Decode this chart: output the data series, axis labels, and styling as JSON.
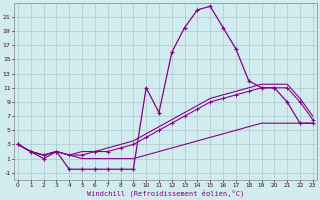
{
  "xlabel": "Windchill (Refroidissement éolien,°C)",
  "background_color": "#d0ecee",
  "grid_color": "#b0c8cc",
  "line_color": "#880088",
  "hours": [
    0,
    1,
    2,
    3,
    4,
    5,
    6,
    7,
    8,
    9,
    10,
    11,
    12,
    13,
    14,
    15,
    16,
    17,
    18,
    19,
    20,
    21,
    22,
    23
  ],
  "windchill": [
    3.0,
    2.0,
    1.0,
    2.0,
    -0.5,
    -0.5,
    -0.5,
    -0.5,
    -0.5,
    -0.5,
    11.0,
    7.5,
    16.0,
    19.5,
    22.0,
    22.5,
    19.5,
    16.5,
    12.0,
    11.0,
    11.0,
    9.0,
    6.0,
    6.0
  ],
  "line1": [
    3.0,
    2.0,
    1.5,
    2.0,
    1.5,
    1.5,
    2.0,
    2.0,
    2.5,
    3.0,
    4.0,
    5.0,
    6.0,
    7.0,
    8.0,
    9.0,
    9.5,
    10.0,
    10.5,
    11.0,
    11.0,
    11.0,
    9.0,
    6.5
  ],
  "line2": [
    3.0,
    2.0,
    1.5,
    2.0,
    1.5,
    2.0,
    2.0,
    2.5,
    3.0,
    3.5,
    4.5,
    5.5,
    6.5,
    7.5,
    8.5,
    9.5,
    10.0,
    10.5,
    11.0,
    11.5,
    11.5,
    11.5,
    9.5,
    7.0
  ],
  "line3": [
    3.0,
    2.0,
    1.5,
    2.0,
    1.5,
    1.0,
    1.0,
    1.0,
    1.0,
    1.0,
    1.5,
    2.0,
    2.5,
    3.0,
    3.5,
    4.0,
    4.5,
    5.0,
    5.5,
    6.0,
    6.0,
    6.0,
    6.0,
    6.0
  ],
  "ylim": [
    -2,
    23
  ],
  "yticks": [
    -1,
    1,
    3,
    5,
    7,
    9,
    11,
    13,
    15,
    17,
    19,
    21
  ],
  "xticks": [
    0,
    1,
    2,
    3,
    4,
    5,
    6,
    7,
    8,
    9,
    10,
    11,
    12,
    13,
    14,
    15,
    16,
    17,
    18,
    19,
    20,
    21,
    22,
    23
  ]
}
